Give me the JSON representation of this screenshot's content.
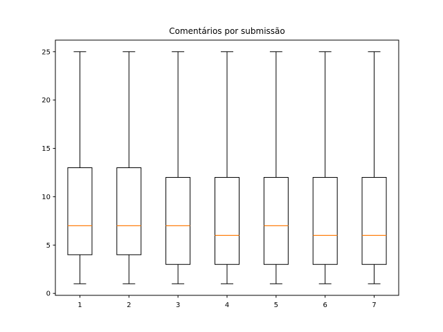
{
  "chart_data": {
    "type": "box",
    "title": "Comentários por submissão",
    "xlabel": "",
    "ylabel": "",
    "categories": [
      "1",
      "2",
      "3",
      "4",
      "5",
      "6",
      "7"
    ],
    "boxes": [
      {
        "category": "1",
        "whisker_low": 1,
        "q1": 4,
        "median": 7,
        "q3": 13,
        "whisker_high": 25
      },
      {
        "category": "2",
        "whisker_low": 1,
        "q1": 4,
        "median": 7,
        "q3": 13,
        "whisker_high": 25
      },
      {
        "category": "3",
        "whisker_low": 1,
        "q1": 3,
        "median": 7,
        "q3": 12,
        "whisker_high": 25
      },
      {
        "category": "4",
        "whisker_low": 1,
        "q1": 3,
        "median": 6,
        "q3": 12,
        "whisker_high": 25
      },
      {
        "category": "5",
        "whisker_low": 1,
        "q1": 3,
        "median": 7,
        "q3": 12,
        "whisker_high": 25
      },
      {
        "category": "6",
        "whisker_low": 1,
        "q1": 3,
        "median": 6,
        "q3": 12,
        "whisker_high": 25
      },
      {
        "category": "7",
        "whisker_low": 1,
        "q1": 3,
        "median": 6,
        "q3": 12,
        "whisker_high": 25
      }
    ],
    "ylim": [
      -0.2,
      26.2
    ],
    "xlim": [
      0.5,
      7.5
    ],
    "yticks": [
      0,
      5,
      10,
      15,
      20,
      25
    ],
    "ytick_labels": [
      "0",
      "5",
      "10",
      "15",
      "20",
      "25"
    ],
    "xtick_labels": [
      "1",
      "2",
      "3",
      "4",
      "5",
      "6",
      "7"
    ],
    "grid": false,
    "colors": {
      "box": "#000000",
      "median": "#ff7f0e",
      "axes": "#000000",
      "background": "#ffffff"
    }
  }
}
